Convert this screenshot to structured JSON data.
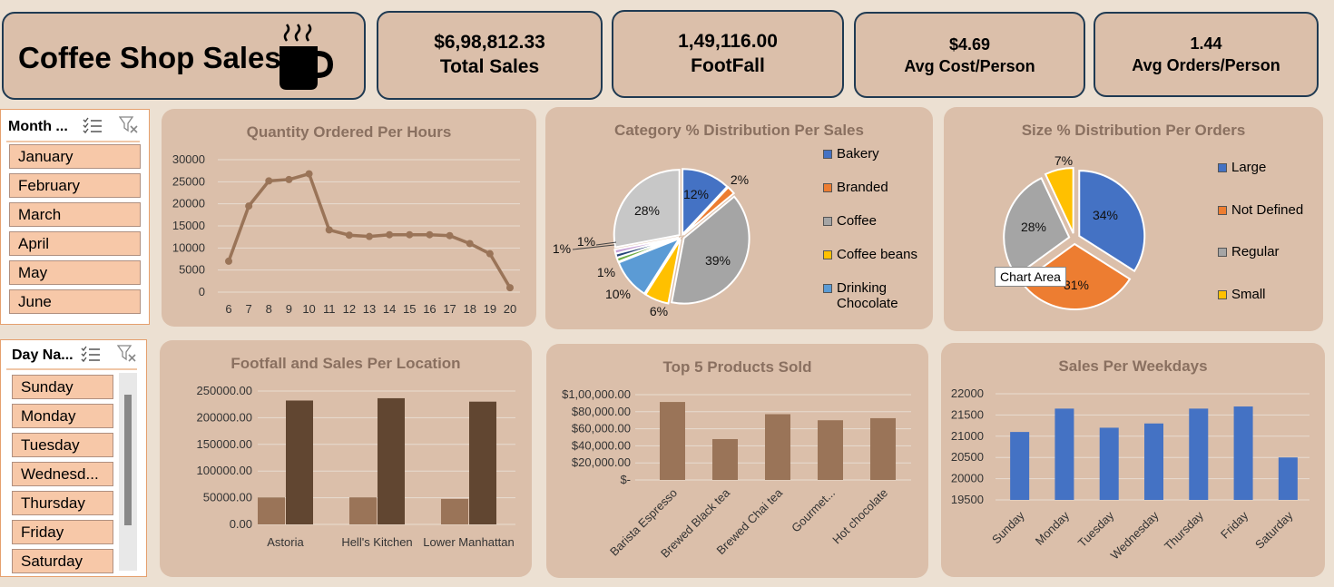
{
  "dashboard": {
    "title": "Coffee Shop Sales",
    "kpis": [
      {
        "value": "$6,98,812.33",
        "label": "Total Sales"
      },
      {
        "value": "1,49,116.00",
        "label": "FootFall"
      },
      {
        "value": "$4.69",
        "label": "Avg Cost/Person"
      },
      {
        "value": "1.44",
        "label": "Avg Orders/Person"
      }
    ]
  },
  "slicers": {
    "month": {
      "header": "Month ...",
      "items": [
        "January",
        "February",
        "March",
        "April",
        "May",
        "June"
      ]
    },
    "day": {
      "header": "Day Na...",
      "items": [
        "Sunday",
        "Monday",
        "Tuesday",
        "Wednesd...",
        "Thursday",
        "Friday",
        "Saturday"
      ]
    }
  },
  "tooltip": "Chart Area",
  "colors": {
    "brown_light": "#9a7458",
    "brown_dark": "#614631",
    "blue": "#4472c4",
    "line": "#9a7458"
  },
  "chart_data": [
    {
      "id": "hours",
      "type": "line",
      "title": "Quantity Ordered Per Hours",
      "x": [
        6,
        7,
        8,
        9,
        10,
        11,
        12,
        13,
        14,
        15,
        16,
        17,
        18,
        19,
        20
      ],
      "values": [
        7000,
        19500,
        25200,
        25500,
        26800,
        14100,
        12900,
        12600,
        13000,
        13000,
        13000,
        12800,
        11000,
        8700,
        1000
      ],
      "ylim": [
        0,
        30000
      ],
      "yticks": [
        0,
        5000,
        10000,
        15000,
        20000,
        25000,
        30000
      ],
      "grid": true
    },
    {
      "id": "category",
      "type": "pie",
      "title": "Category % Distribution Per Sales",
      "slices": [
        {
          "name": "Bakery",
          "value": 12,
          "label": "12%",
          "color": "#4472c4"
        },
        {
          "name": "Branded",
          "value": 2,
          "label": "2%",
          "color": "#ed7d31"
        },
        {
          "name": "Coffee",
          "value": 39,
          "label": "39%",
          "color": "#a5a5a5"
        },
        {
          "name": "Coffee beans",
          "value": 6,
          "label": "6%",
          "color": "#ffc000"
        },
        {
          "name": "Drinking Chocolate",
          "value": 10,
          "label": "10%",
          "color": "#5b9bd5"
        },
        {
          "name": "",
          "value": 1,
          "label": "1%",
          "color": "#70ad47"
        },
        {
          "name": "",
          "value": 1,
          "label": "1%",
          "color": "#264478"
        },
        {
          "name": "",
          "value": 1,
          "label": "1%",
          "color": "#c9a3d8"
        },
        {
          "name": "",
          "value": 28,
          "label": "28%",
          "color": "#c7c7c7"
        }
      ],
      "legend": [
        "Bakery",
        "Branded",
        "Coffee",
        "Coffee beans",
        "Drinking Chocolate"
      ],
      "legend_colors": [
        "#4472c4",
        "#ed7d31",
        "#a5a5a5",
        "#ffc000",
        "#5b9bd5"
      ],
      "legend_position": "right"
    },
    {
      "id": "size",
      "type": "pie",
      "title": "Size % Distribution Per Orders",
      "slices": [
        {
          "name": "Large",
          "value": 34,
          "label": "34%",
          "color": "#4472c4"
        },
        {
          "name": "Not Defined",
          "value": 31,
          "label": "31%",
          "color": "#ed7d31"
        },
        {
          "name": "Regular",
          "value": 28,
          "label": "28%",
          "color": "#a5a5a5"
        },
        {
          "name": "Small",
          "value": 7,
          "label": "7%",
          "color": "#ffc000"
        }
      ],
      "legend": [
        "Large",
        "Not Defined",
        "Regular",
        "Small"
      ],
      "legend_colors": [
        "#4472c4",
        "#ed7d31",
        "#a5a5a5",
        "#ffc000"
      ],
      "legend_position": "right"
    },
    {
      "id": "location",
      "type": "bar",
      "title": "Footfall and Sales Per Location",
      "categories": [
        "Astoria",
        "Hell's Kitchen",
        "Lower Manhattan"
      ],
      "series": [
        {
          "values": [
            50600,
            50700,
            47800
          ]
        },
        {
          "values": [
            232200,
            236500,
            230100
          ]
        }
      ],
      "ylim": [
        0,
        250000
      ],
      "yticks": [
        "0.00",
        "50000.00",
        "100000.00",
        "150000.00",
        "200000.00",
        "250000.00"
      ]
    },
    {
      "id": "products",
      "type": "bar",
      "title": "Top 5 Products Sold",
      "categories": [
        "Barista Espresso",
        "Brewed Black tea",
        "Brewed Chai tea",
        "Gourmet...",
        "Hot chocolate"
      ],
      "values": [
        91400,
        47900,
        77100,
        70000,
        72400
      ],
      "ylim": [
        0,
        100000
      ],
      "yticks": [
        "$-",
        "$20,000.00",
        "$40,000.00",
        "$60,000.00",
        "$80,000.00",
        "$1,00,000.00"
      ]
    },
    {
      "id": "weekdays",
      "type": "bar",
      "title": "Sales Per Weekdays",
      "categories": [
        "Sunday",
        "Monday",
        "Tuesday",
        "Wednesday",
        "Thursday",
        "Friday",
        "Saturday"
      ],
      "values": [
        21100,
        21650,
        21200,
        21300,
        21650,
        21700,
        20500
      ],
      "ylim": [
        19500,
        22000
      ],
      "yticks": [
        "19500",
        "20000",
        "20500",
        "21000",
        "21500",
        "22000"
      ]
    }
  ]
}
